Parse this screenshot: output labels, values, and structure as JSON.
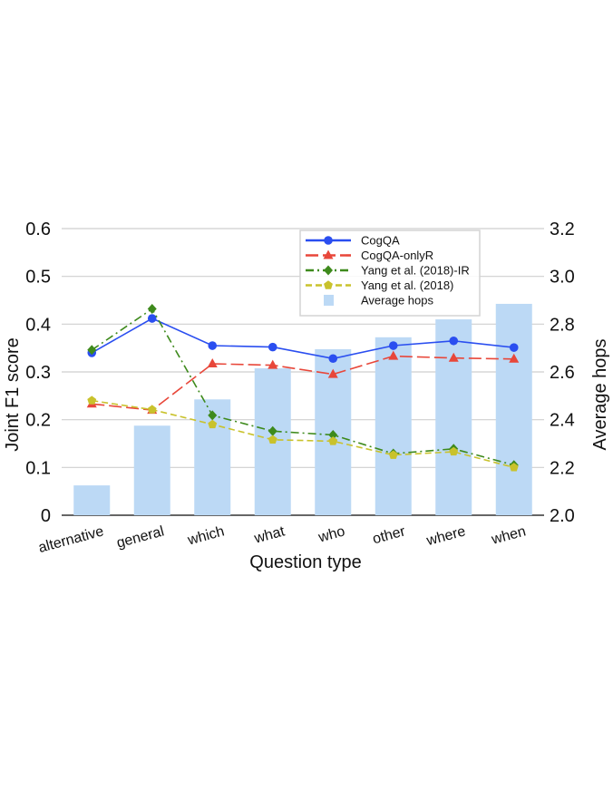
{
  "chart_data": {
    "type": "bar+line",
    "categories": [
      "alternative",
      "general",
      "which",
      "what",
      "who",
      "other",
      "where",
      "when"
    ],
    "xlabel": "Question type",
    "ylabel": "Joint F1 score",
    "ylabel_right": "Average hops",
    "ylim": [
      0,
      0.6
    ],
    "ylim_right": [
      2.0,
      3.2
    ],
    "yticks": [
      "0",
      "0.1",
      "0.2",
      "0.3",
      "0.4",
      "0.5",
      "0.6"
    ],
    "yticks_right": [
      "2.0",
      "2.2",
      "2.4",
      "2.6",
      "2.8",
      "3.0",
      "3.2"
    ],
    "grid": true,
    "legend_position": "top-right",
    "bars": {
      "name": "Average hops",
      "color": "#bcd9f5",
      "values": [
        2.125,
        2.375,
        2.485,
        2.615,
        2.695,
        2.745,
        2.82,
        2.885
      ]
    },
    "series": [
      {
        "name": "CogQA",
        "color": "#2a4ef0",
        "marker": "circle",
        "dash": "solid",
        "values": [
          0.34,
          0.412,
          0.355,
          0.352,
          0.328,
          0.355,
          0.365,
          0.351
        ]
      },
      {
        "name": "CogQA-onlyR",
        "color": "#e8473a",
        "marker": "triangle",
        "dash": "long",
        "values": [
          0.233,
          0.22,
          0.317,
          0.314,
          0.295,
          0.333,
          0.329,
          0.327
        ]
      },
      {
        "name": "Yang et al. (2018)-IR",
        "color": "#3e8a1c",
        "marker": "diamond",
        "dash": "dashdot",
        "values": [
          0.346,
          0.432,
          0.209,
          0.176,
          0.168,
          0.129,
          0.139,
          0.105
        ]
      },
      {
        "name": "Yang et al. (2018)",
        "color": "#c9c22c",
        "marker": "pentagon",
        "dash": "dash",
        "values": [
          0.24,
          0.221,
          0.19,
          0.158,
          0.155,
          0.126,
          0.133,
          0.1
        ]
      }
    ]
  }
}
